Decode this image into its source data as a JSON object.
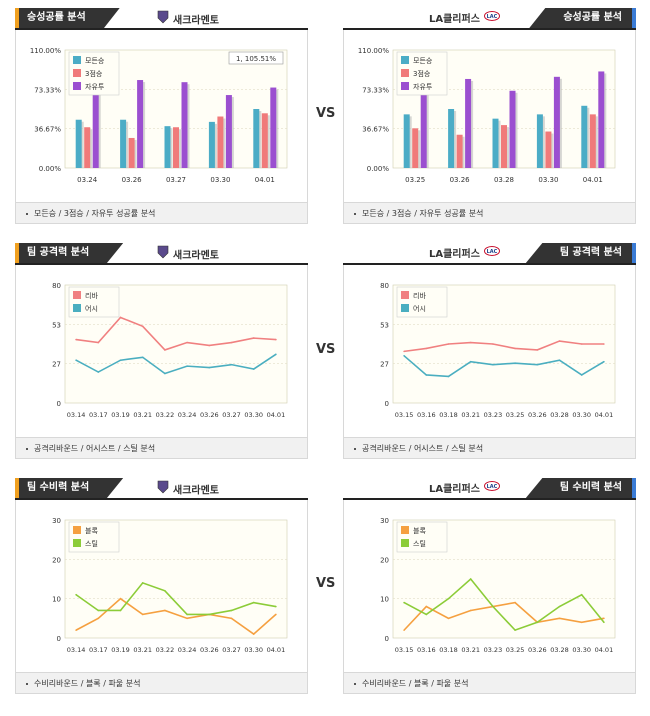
{
  "vs_label": "VS",
  "teams": {
    "home": "새크라멘토",
    "away": "LA클리퍼스"
  },
  "sections": [
    {
      "tab": "승성공률 분석",
      "footer": "모든승 / 3점승 / 자유투 성공률 분석"
    },
    {
      "tab": "팀 공격력 분석",
      "footer": "공격리바운드 / 어시스트 / 스틸 분석"
    },
    {
      "tab": "팀 수비력 분석",
      "footer": "수비리바운드 / 블록 / 파울 분석"
    }
  ],
  "colors": {
    "series1": "#4bacc6",
    "series2": "#f07a7a",
    "series3": "#9b4fd0",
    "rebound": "#f08080",
    "assist": "#4aaec0",
    "block": "#f5a040",
    "steal": "#8ccc38",
    "plot_bg": "#fffef6",
    "grid": "#e2dfc8",
    "header_bg": "#333333"
  },
  "chart_data": [
    {
      "type": "bar",
      "team": "새크라멘토",
      "categories": [
        "03.24",
        "03.26",
        "03.27",
        "03.30",
        "04.01"
      ],
      "yticks": [
        "0.00%",
        "36.67%",
        "73.33%",
        "110.00%"
      ],
      "ylim": [
        0,
        110
      ],
      "tooltip": "1, 105.51%",
      "series": [
        {
          "name": "모든승",
          "values": [
            45,
            45,
            39,
            43,
            55
          ]
        },
        {
          "name": "3점승",
          "values": [
            38,
            28,
            38,
            48,
            51
          ]
        },
        {
          "name": "자유투",
          "values": [
            80,
            82,
            80,
            68,
            75
          ]
        }
      ]
    },
    {
      "type": "bar",
      "team": "LA클리퍼스",
      "categories": [
        "03.25",
        "03.26",
        "03.28",
        "03.30",
        "04.01"
      ],
      "yticks": [
        "0.00%",
        "36.67%",
        "73.33%",
        "110.00%"
      ],
      "ylim": [
        0,
        110
      ],
      "series": [
        {
          "name": "모든승",
          "values": [
            50,
            55,
            46,
            50,
            58
          ]
        },
        {
          "name": "3점승",
          "values": [
            37,
            31,
            40,
            34,
            50
          ]
        },
        {
          "name": "자유투",
          "values": [
            88,
            83,
            72,
            85,
            90
          ]
        }
      ]
    },
    {
      "type": "line",
      "team": "새크라멘토",
      "categories": [
        "03.14",
        "03.17",
        "03.19",
        "03.21",
        "03.22",
        "03.24",
        "03.26",
        "03.27",
        "03.30",
        "04.01"
      ],
      "yticks": [
        "0",
        "27",
        "53",
        "80"
      ],
      "ylim": [
        0,
        80
      ],
      "series": [
        {
          "name": "리바",
          "values": [
            43,
            41,
            58,
            52,
            36,
            41,
            39,
            41,
            44,
            43
          ]
        },
        {
          "name": "어시",
          "values": [
            29,
            21,
            29,
            31,
            20,
            25,
            24,
            26,
            23,
            33
          ]
        }
      ]
    },
    {
      "type": "line",
      "team": "LA클리퍼스",
      "categories": [
        "03.15",
        "03.16",
        "03.18",
        "03.21",
        "03.23",
        "03.25",
        "03.26",
        "03.28",
        "03.30",
        "04.01"
      ],
      "yticks": [
        "0",
        "27",
        "53",
        "80"
      ],
      "ylim": [
        0,
        80
      ],
      "series": [
        {
          "name": "리바",
          "values": [
            35,
            37,
            40,
            41,
            40,
            37,
            36,
            42,
            40,
            40
          ]
        },
        {
          "name": "어시",
          "values": [
            32,
            19,
            18,
            28,
            26,
            27,
            26,
            29,
            19,
            28
          ]
        }
      ]
    },
    {
      "type": "line",
      "team": "새크라멘토",
      "categories": [
        "03.14",
        "03.17",
        "03.19",
        "03.21",
        "03.22",
        "03.24",
        "03.26",
        "03.27",
        "03.30",
        "04.01"
      ],
      "yticks": [
        "0",
        "10",
        "20",
        "30"
      ],
      "ylim": [
        0,
        30
      ],
      "series": [
        {
          "name": "블록",
          "values": [
            2,
            5,
            10,
            6,
            7,
            5,
            6,
            5,
            1,
            6
          ]
        },
        {
          "name": "스틸",
          "values": [
            11,
            7,
            7,
            14,
            12,
            6,
            6,
            7,
            9,
            8
          ]
        }
      ]
    },
    {
      "type": "line",
      "team": "LA클리퍼스",
      "categories": [
        "03.15",
        "03.16",
        "03.18",
        "03.21",
        "03.23",
        "03.25",
        "03.26",
        "03.28",
        "03.30",
        "04.01"
      ],
      "yticks": [
        "0",
        "10",
        "20",
        "30"
      ],
      "ylim": [
        0,
        30
      ],
      "series": [
        {
          "name": "블록",
          "values": [
            2,
            8,
            5,
            7,
            8,
            9,
            4,
            5,
            4,
            5
          ]
        },
        {
          "name": "스틸",
          "values": [
            9,
            6,
            10,
            15,
            8,
            2,
            4,
            8,
            11,
            4
          ]
        }
      ]
    }
  ]
}
